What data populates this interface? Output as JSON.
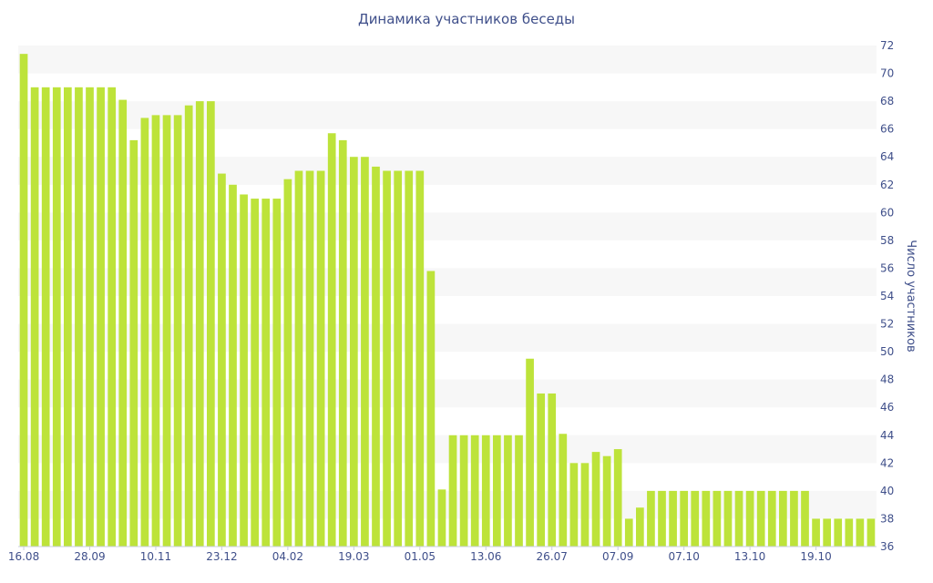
{
  "chart_data": {
    "type": "bar",
    "title": "Динамика участников беседы",
    "xlabel": "",
    "ylabel": "Число участников",
    "ylim": [
      36,
      72
    ],
    "yticks": [
      36,
      38,
      40,
      42,
      44,
      46,
      48,
      50,
      52,
      54,
      56,
      58,
      60,
      62,
      64,
      66,
      68,
      70,
      72
    ],
    "xtick_labels": [
      "16.08",
      "28.09",
      "10.11",
      "23.12",
      "04.02",
      "19.03",
      "01.05",
      "13.06",
      "26.07",
      "07.09",
      "07.10",
      "13.10",
      "19.10"
    ],
    "xtick_bar_index": [
      0,
      6,
      12,
      18,
      24,
      30,
      36,
      42,
      48,
      54,
      60,
      66,
      72
    ],
    "values": [
      71.4,
      69,
      69,
      69,
      69,
      69,
      69,
      69,
      69,
      68.1,
      65.2,
      66.8,
      67,
      67,
      67,
      67.7,
      68,
      68,
      62.8,
      62,
      61.3,
      61,
      61,
      61,
      62.4,
      63,
      63,
      63,
      65.7,
      65.2,
      64,
      64,
      63.3,
      63,
      63,
      63,
      63,
      55.8,
      40.1,
      44,
      44,
      44,
      44,
      44,
      44,
      44,
      49.5,
      47,
      47,
      44.1,
      42,
      42,
      42.8,
      42.5,
      43,
      38,
      38.8,
      40,
      40,
      40,
      40,
      40,
      40,
      40,
      40,
      40,
      40,
      40,
      40,
      40,
      40,
      40,
      38,
      38,
      38,
      38,
      38,
      38
    ],
    "grid": "horizontal-bands",
    "legend": "none",
    "colors": {
      "bar": "#bde33a",
      "band": "#f7f7f7",
      "text": "#3f4f8a"
    }
  }
}
